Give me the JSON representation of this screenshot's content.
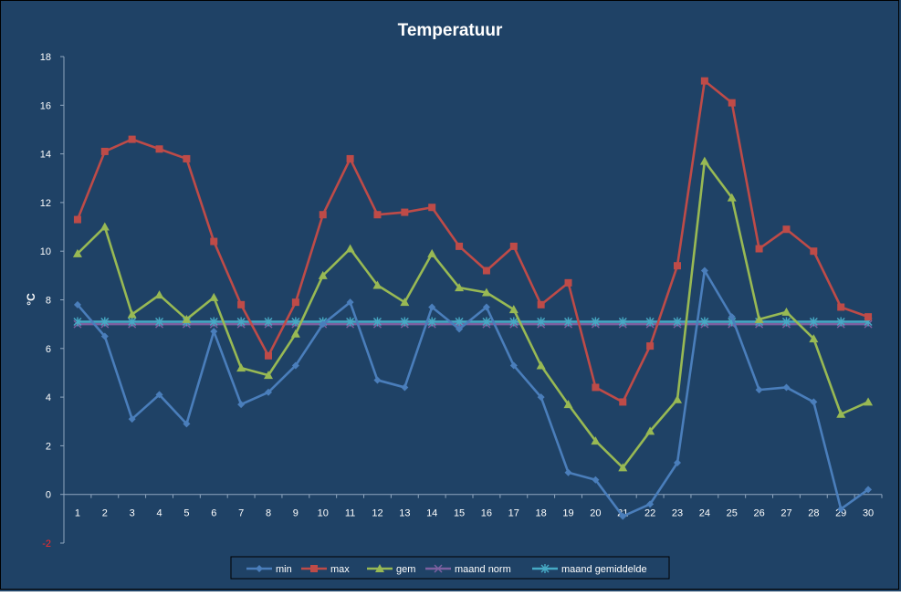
{
  "chart_data": {
    "type": "line",
    "title": "Temperatuur",
    "ylabel": "°C",
    "xlabel": "",
    "ylim": [
      -2,
      18
    ],
    "yticks": [
      "-2",
      "0",
      "2",
      "4",
      "6",
      "8",
      "10",
      "12",
      "14",
      "16",
      "18"
    ],
    "x": [
      "1",
      "2",
      "3",
      "4",
      "5",
      "6",
      "7",
      "8",
      "9",
      "10",
      "11",
      "12",
      "13",
      "14",
      "15",
      "16",
      "17",
      "18",
      "19",
      "20",
      "21",
      "22",
      "23",
      "24",
      "25",
      "26",
      "27",
      "28",
      "29",
      "30"
    ],
    "grid": false,
    "legend_position": "bottom",
    "series": [
      {
        "name": "min",
        "color": "#4A7EBB",
        "marker": "diamond",
        "values": [
          7.8,
          6.5,
          3.1,
          4.1,
          2.9,
          6.7,
          3.7,
          4.2,
          5.3,
          7.0,
          7.9,
          4.7,
          4.4,
          7.7,
          6.8,
          7.7,
          5.3,
          4.0,
          0.9,
          0.6,
          -0.9,
          -0.4,
          1.3,
          9.2,
          7.3,
          4.3,
          4.4,
          3.8,
          -0.6,
          0.2
        ]
      },
      {
        "name": "max",
        "color": "#BE4B48",
        "marker": "square",
        "values": [
          11.3,
          14.1,
          14.6,
          14.2,
          13.8,
          10.4,
          7.8,
          5.7,
          7.9,
          11.5,
          13.8,
          11.5,
          11.6,
          11.8,
          10.2,
          9.2,
          10.2,
          7.8,
          8.7,
          4.4,
          3.8,
          6.1,
          9.4,
          17.0,
          16.1,
          10.1,
          10.9,
          10.0,
          7.7,
          7.3
        ]
      },
      {
        "name": "gem",
        "color": "#98B954",
        "marker": "triangle",
        "values": [
          9.9,
          11.0,
          7.4,
          8.2,
          7.2,
          8.1,
          5.2,
          4.9,
          6.6,
          9.0,
          10.1,
          8.6,
          7.9,
          9.9,
          8.5,
          8.3,
          7.6,
          5.3,
          3.7,
          2.2,
          1.1,
          2.6,
          3.9,
          13.7,
          12.2,
          7.2,
          7.5,
          6.4,
          3.3,
          3.8
        ]
      },
      {
        "name": "maand norm",
        "color": "#7D60A0",
        "marker": "x",
        "values": [
          7.0,
          7.0,
          7.0,
          7.0,
          7.0,
          7.0,
          7.0,
          7.0,
          7.0,
          7.0,
          7.0,
          7.0,
          7.0,
          7.0,
          7.0,
          7.0,
          7.0,
          7.0,
          7.0,
          7.0,
          7.0,
          7.0,
          7.0,
          7.0,
          7.0,
          7.0,
          7.0,
          7.0,
          7.0,
          7.0
        ]
      },
      {
        "name": "maand gemiddelde",
        "color": "#46AAC5",
        "marker": "star",
        "values": [
          7.1,
          7.1,
          7.1,
          7.1,
          7.1,
          7.1,
          7.1,
          7.1,
          7.1,
          7.1,
          7.1,
          7.1,
          7.1,
          7.1,
          7.1,
          7.1,
          7.1,
          7.1,
          7.1,
          7.1,
          7.1,
          7.1,
          7.1,
          7.1,
          7.1,
          7.1,
          7.1,
          7.1,
          7.1,
          7.1
        ]
      }
    ]
  },
  "colors": {
    "background": "#1F4266",
    "text": "#FFFFFF",
    "axis": "#8FA6BF",
    "negative_tick": "#FF2A2A"
  }
}
